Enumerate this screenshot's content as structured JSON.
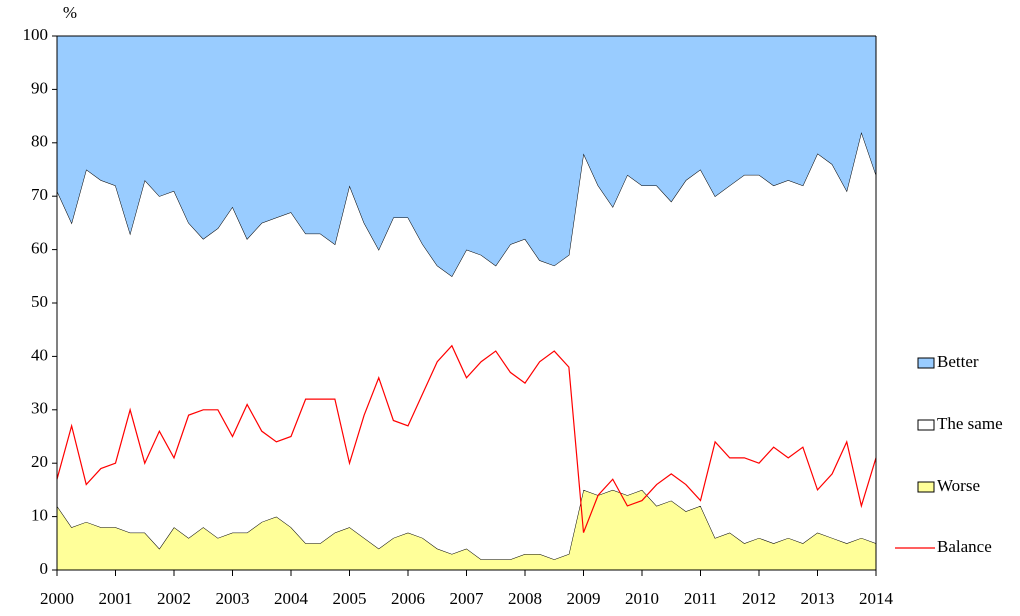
{
  "chart_data": {
    "type": "area",
    "stacked": true,
    "y_label": "%",
    "x": [
      2000,
      2000.25,
      2000.5,
      2000.75,
      2001,
      2001.25,
      2001.5,
      2001.75,
      2002,
      2002.25,
      2002.5,
      2002.75,
      2003,
      2003.25,
      2003.5,
      2003.75,
      2004,
      2004.25,
      2004.5,
      2004.75,
      2005,
      2005.25,
      2005.5,
      2005.75,
      2006,
      2006.25,
      2006.5,
      2006.75,
      2007,
      2007.25,
      2007.5,
      2007.75,
      2008,
      2008.25,
      2008.5,
      2008.75,
      2009,
      2009.25,
      2009.5,
      2009.75,
      2010,
      2010.25,
      2010.5,
      2010.75,
      2011,
      2011.25,
      2011.5,
      2011.75,
      2012,
      2012.25,
      2012.5,
      2012.75,
      2013,
      2013.25,
      2013.5,
      2013.75,
      2014
    ],
    "series": [
      {
        "name": "Better",
        "color": "#99ccff",
        "values": [
          29,
          35,
          25,
          27,
          28,
          37,
          27,
          30,
          29,
          35,
          38,
          36,
          32,
          38,
          35,
          34,
          33,
          37,
          37,
          39,
          28,
          35,
          40,
          34,
          34,
          39,
          43,
          45,
          40,
          41,
          43,
          39,
          38,
          42,
          43,
          41,
          22,
          28,
          32,
          26,
          28,
          28,
          31,
          27,
          25,
          30,
          28,
          26,
          26,
          28,
          27,
          28,
          22,
          24,
          29,
          18,
          26
        ]
      },
      {
        "name": "The same",
        "color": "#ffffff",
        "values": [
          59,
          57,
          66,
          65,
          64,
          56,
          66,
          66,
          63,
          59,
          54,
          58,
          61,
          55,
          56,
          56,
          59,
          58,
          58,
          54,
          64,
          59,
          56,
          60,
          59,
          55,
          53,
          52,
          56,
          57,
          55,
          59,
          59,
          55,
          55,
          56,
          63,
          58,
          53,
          60,
          57,
          60,
          56,
          62,
          63,
          64,
          65,
          69,
          68,
          67,
          67,
          67,
          71,
          70,
          66,
          76,
          69
        ]
      },
      {
        "name": "Worse",
        "color": "#ffff99",
        "values": [
          12,
          8,
          9,
          8,
          8,
          7,
          7,
          4,
          8,
          6,
          8,
          6,
          7,
          7,
          9,
          10,
          8,
          5,
          5,
          7,
          8,
          6,
          4,
          6,
          7,
          6,
          4,
          3,
          4,
          2,
          2,
          2,
          3,
          3,
          2,
          3,
          15,
          14,
          15,
          14,
          15,
          12,
          13,
          11,
          12,
          6,
          7,
          5,
          6,
          5,
          6,
          5,
          7,
          6,
          5,
          6,
          5
        ]
      },
      {
        "name": "Balance",
        "color": "#ff0000",
        "type": "line",
        "values": [
          17,
          27,
          16,
          19,
          20,
          30,
          20,
          26,
          21,
          29,
          30,
          30,
          25,
          31,
          26,
          24,
          25,
          32,
          32,
          32,
          20,
          29,
          36,
          28,
          27,
          33,
          39,
          42,
          36,
          39,
          41,
          37,
          35,
          39,
          41,
          38,
          7,
          14,
          17,
          12,
          13,
          16,
          18,
          16,
          13,
          24,
          21,
          21,
          20,
          23,
          21,
          23,
          15,
          18,
          24,
          12,
          21
        ]
      }
    ],
    "xlim": [
      2000,
      2014
    ],
    "xticks": [
      2000,
      2001,
      2002,
      2003,
      2004,
      2005,
      2006,
      2007,
      2008,
      2009,
      2010,
      2011,
      2012,
      2013,
      2014
    ],
    "ylim": [
      0,
      100
    ],
    "yticks": [
      0,
      10,
      20,
      30,
      40,
      50,
      60,
      70,
      80,
      90,
      100
    ],
    "legend": "right"
  }
}
